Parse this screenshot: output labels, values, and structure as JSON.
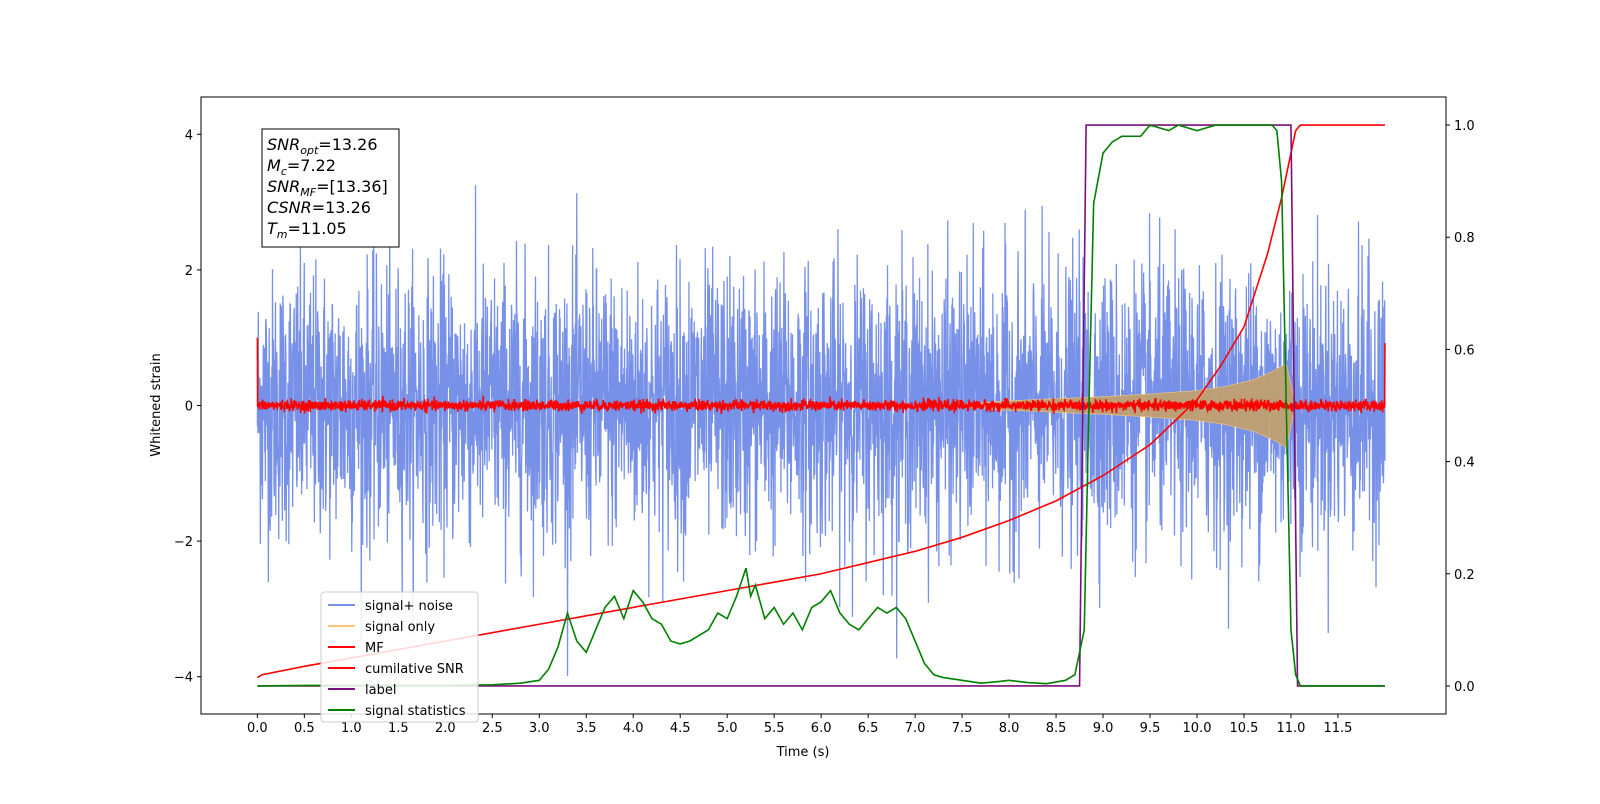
{
  "chart_data": {
    "type": "line",
    "title": "",
    "xlabel": "Time (s)",
    "ylabel": "Whitened strain",
    "xlim": [
      -0.6,
      12.65
    ],
    "ylim": [
      -4.55,
      4.55
    ],
    "y2lim": [
      -0.05,
      1.05
    ],
    "x_ticks": [
      0.0,
      0.5,
      1.0,
      1.5,
      2.0,
      2.5,
      3.0,
      3.5,
      4.0,
      4.5,
      5.0,
      5.5,
      6.0,
      6.5,
      7.0,
      7.5,
      8.0,
      8.5,
      9.0,
      9.5,
      10.0,
      10.5,
      11.0,
      11.5
    ],
    "x_tick_labels": [
      "0.0",
      "0.5",
      "1.0",
      "1.5",
      "2.0",
      "2.5",
      "3.0",
      "3.5",
      "4.0",
      "4.5",
      "5.0",
      "5.5",
      "6.0",
      "6.5",
      "7.0",
      "7.5",
      "8.0",
      "8.5",
      "9.0",
      "9.5",
      "10.0",
      "10.5",
      "11.0",
      "11.5"
    ],
    "y_ticks": [
      -4,
      -2,
      0,
      2,
      4
    ],
    "y_tick_labels": [
      "−4",
      "−2",
      "0",
      "2",
      "4"
    ],
    "y2_ticks": [
      0.0,
      0.2,
      0.4,
      0.6,
      0.8,
      1.0
    ],
    "y2_tick_labels": [
      "0.0",
      "0.2",
      "0.4",
      "0.6",
      "0.8",
      "1.0"
    ],
    "grid": false,
    "legend_position": "lower-left",
    "annotation": {
      "lines": [
        {
          "base": "SNR",
          "sub": "opt",
          "rest": "=13.26"
        },
        {
          "base": "M",
          "sub": "c",
          "rest": "=7.22"
        },
        {
          "base": "SNR",
          "sub": "MF",
          "rest": "=[13.36]"
        },
        {
          "base": "CSNR",
          "sub": "",
          "rest": "=13.26"
        },
        {
          "base": "T",
          "sub": "m",
          "rest": "=11.05"
        }
      ]
    },
    "series": [
      {
        "name": "signal+ noise",
        "color": "#7891e8",
        "axis": "left",
        "kind": "noise",
        "x_range": [
          0.0,
          12.0
        ],
        "amplitude_envelope": {
          "x": [
            0.0,
            12.0
          ],
          "y": [
            1.6,
            1.6
          ]
        },
        "extremes": {
          "max": 4.12,
          "min": -4.1
        }
      },
      {
        "name": "signal only",
        "color": "#f5c77a",
        "axis": "left",
        "kind": "chirp",
        "x_range": [
          7.3,
          11.05
        ],
        "amplitude_envelope": {
          "x": [
            7.3,
            8.0,
            8.5,
            9.0,
            9.5,
            10.0,
            10.3,
            10.6,
            10.8,
            10.95,
            11.05
          ],
          "y": [
            0.0,
            0.07,
            0.1,
            0.13,
            0.17,
            0.22,
            0.28,
            0.38,
            0.5,
            0.62,
            0.0
          ]
        }
      },
      {
        "name": "MF",
        "color": "#ff0000",
        "axis": "left",
        "kind": "noise",
        "x_range": [
          0.0,
          12.0
        ],
        "amplitude_envelope": {
          "x": [
            0.0,
            12.0
          ],
          "y": [
            0.08,
            0.08
          ]
        },
        "edge_values": {
          "start": 1.0,
          "end": 0.92
        }
      },
      {
        "name": "cumilative SNR",
        "color": "#ff0000",
        "axis": "right",
        "kind": "line",
        "x": [
          0.0,
          0.05,
          0.5,
          1.0,
          1.5,
          2.0,
          2.5,
          3.0,
          3.5,
          4.0,
          4.5,
          5.0,
          5.5,
          6.0,
          6.5,
          7.0,
          7.5,
          8.0,
          8.5,
          9.0,
          9.5,
          10.0,
          10.25,
          10.5,
          10.75,
          10.9,
          11.0,
          11.05,
          11.1,
          12.0
        ],
        "y": [
          0.015,
          0.02,
          0.035,
          0.05,
          0.065,
          0.08,
          0.095,
          0.11,
          0.125,
          0.14,
          0.155,
          0.17,
          0.185,
          0.2,
          0.22,
          0.24,
          0.265,
          0.295,
          0.33,
          0.375,
          0.43,
          0.51,
          0.57,
          0.64,
          0.77,
          0.87,
          0.95,
          0.99,
          1.0,
          1.0
        ]
      },
      {
        "name": "label",
        "color": "#7b0f7b",
        "axis": "right",
        "kind": "line",
        "x": [
          0.0,
          8.75,
          8.82,
          11.0,
          11.07,
          12.0
        ],
        "y": [
          0.0,
          0.0,
          1.0,
          1.0,
          0.0,
          0.0
        ]
      },
      {
        "name": "signal statistics",
        "color": "#008000",
        "axis": "right",
        "kind": "line",
        "x": [
          0.0,
          0.5,
          1.0,
          1.5,
          2.0,
          2.5,
          2.8,
          3.0,
          3.1,
          3.2,
          3.3,
          3.4,
          3.5,
          3.6,
          3.7,
          3.8,
          3.9,
          4.0,
          4.1,
          4.2,
          4.3,
          4.4,
          4.5,
          4.6,
          4.7,
          4.8,
          4.9,
          5.0,
          5.1,
          5.2,
          5.25,
          5.3,
          5.4,
          5.5,
          5.6,
          5.7,
          5.8,
          5.9,
          6.0,
          6.1,
          6.2,
          6.3,
          6.4,
          6.5,
          6.6,
          6.7,
          6.8,
          6.9,
          7.0,
          7.1,
          7.2,
          7.3,
          7.5,
          7.7,
          7.9,
          8.0,
          8.2,
          8.4,
          8.6,
          8.7,
          8.8,
          8.85,
          8.9,
          9.0,
          9.1,
          9.2,
          9.3,
          9.4,
          9.5,
          9.7,
          9.8,
          10.0,
          10.2,
          10.5,
          10.8,
          10.85,
          10.9,
          10.95,
          11.0,
          11.05,
          11.1,
          12.0
        ],
        "y": [
          0.0,
          0.001,
          0.001,
          0.001,
          0.001,
          0.002,
          0.005,
          0.01,
          0.03,
          0.07,
          0.13,
          0.08,
          0.06,
          0.1,
          0.14,
          0.16,
          0.12,
          0.17,
          0.15,
          0.12,
          0.11,
          0.08,
          0.075,
          0.08,
          0.09,
          0.1,
          0.13,
          0.12,
          0.16,
          0.21,
          0.16,
          0.18,
          0.12,
          0.14,
          0.11,
          0.13,
          0.1,
          0.14,
          0.15,
          0.17,
          0.13,
          0.11,
          0.1,
          0.12,
          0.14,
          0.13,
          0.14,
          0.12,
          0.08,
          0.04,
          0.02,
          0.015,
          0.01,
          0.005,
          0.008,
          0.01,
          0.006,
          0.004,
          0.01,
          0.02,
          0.1,
          0.5,
          0.86,
          0.95,
          0.97,
          0.98,
          0.98,
          0.98,
          1.0,
          0.99,
          1.0,
          0.99,
          1.0,
          1.0,
          1.0,
          0.99,
          0.9,
          0.5,
          0.1,
          0.02,
          0.0,
          0.0
        ]
      }
    ]
  }
}
